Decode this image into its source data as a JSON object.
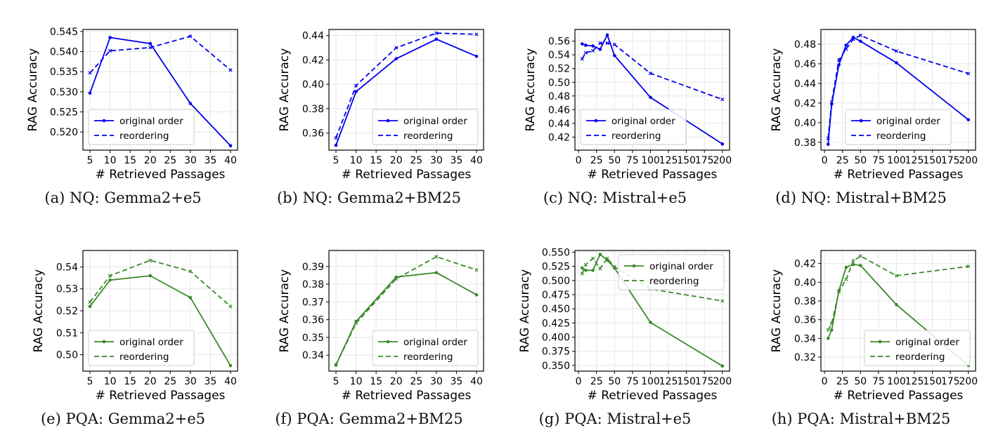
{
  "colors": {
    "blue": "#0000ee",
    "green": "#3a8a2a",
    "grid": "#e6e6e6"
  },
  "charts": [
    {
      "type": "line",
      "caption": "(a)  NQ: Gemma2+e5",
      "color": "blue",
      "xlabel": "# Retrieved Passages",
      "ylabel": "RAG Accuracy",
      "xlim": [
        3.25,
        41.75
      ],
      "ylim": [
        0.5155,
        0.5455
      ],
      "xticks": [
        5,
        10,
        15,
        20,
        25,
        30,
        35,
        40
      ],
      "yticks": [
        0.52,
        0.525,
        0.53,
        0.535,
        0.54,
        0.545
      ],
      "ytick_labels": [
        "0.520",
        "0.525",
        "0.530",
        "0.535",
        "0.540",
        "0.545"
      ],
      "legend_loc": "lower-left",
      "series": [
        {
          "name": "original order",
          "x": [
            5,
            10,
            20,
            30,
            40
          ],
          "y": [
            0.5297,
            0.5435,
            0.542,
            0.5271,
            0.5166
          ]
        },
        {
          "name": "reordering",
          "x": [
            5,
            10,
            20,
            30,
            40
          ],
          "y": [
            0.5347,
            0.5402,
            0.541,
            0.5438,
            0.5354
          ]
        }
      ]
    },
    {
      "type": "line",
      "caption": "(b)  NQ: Gemma2+BM25",
      "color": "blue",
      "xlabel": "# Retrieved Passages",
      "ylabel": "RAG Accuracy",
      "xlim": [
        3.25,
        41.75
      ],
      "ylim": [
        0.346,
        0.445
      ],
      "xticks": [
        5,
        10,
        15,
        20,
        25,
        30,
        35,
        40
      ],
      "yticks": [
        0.36,
        0.38,
        0.4,
        0.42,
        0.44
      ],
      "ytick_labels": [
        "0.36",
        "0.38",
        "0.40",
        "0.42",
        "0.44"
      ],
      "legend_loc": "lower-right",
      "series": [
        {
          "name": "original order",
          "x": [
            5,
            10,
            20,
            30,
            40
          ],
          "y": [
            0.35,
            0.394,
            0.421,
            0.437,
            0.423
          ]
        },
        {
          "name": "reordering",
          "x": [
            5,
            10,
            20,
            30,
            40
          ],
          "y": [
            0.356,
            0.399,
            0.43,
            0.442,
            0.441
          ]
        }
      ]
    },
    {
      "type": "line",
      "caption": "(c)  NQ: Mistral+e5",
      "color": "blue",
      "xlabel": "# Retrieved Passages",
      "ylabel": "RAG Accuracy",
      "xlim": [
        -5,
        210
      ],
      "ylim": [
        0.401,
        0.577
      ],
      "xticks": [
        0,
        25,
        50,
        75,
        100,
        125,
        150,
        175,
        200
      ],
      "yticks": [
        0.42,
        0.44,
        0.46,
        0.48,
        0.5,
        0.52,
        0.54,
        0.56
      ],
      "ytick_labels": [
        "0.42",
        "0.44",
        "0.46",
        "0.48",
        "0.50",
        "0.52",
        "0.54",
        "0.56"
      ],
      "legend_loc": "lower-left",
      "series": [
        {
          "name": "original order",
          "x": [
            5,
            10,
            20,
            30,
            40,
            50,
            100,
            200
          ],
          "y": [
            0.556,
            0.554,
            0.553,
            0.548,
            0.569,
            0.539,
            0.478,
            0.41
          ]
        },
        {
          "name": "reordering",
          "x": [
            5,
            10,
            20,
            30,
            40,
            50,
            100,
            200
          ],
          "y": [
            0.534,
            0.543,
            0.546,
            0.557,
            0.557,
            0.555,
            0.513,
            0.475
          ]
        }
      ]
    },
    {
      "type": "line",
      "caption": "(d)  NQ: Mistral+BM25",
      "color": "blue",
      "xlabel": "# Retrieved Passages",
      "ylabel": "RAG Accuracy",
      "xlim": [
        -5,
        210
      ],
      "ylim": [
        0.372,
        0.495
      ],
      "xticks": [
        0,
        25,
        50,
        75,
        100,
        125,
        150,
        175,
        200
      ],
      "yticks": [
        0.38,
        0.4,
        0.42,
        0.44,
        0.46,
        0.48
      ],
      "ytick_labels": [
        "0.38",
        "0.40",
        "0.42",
        "0.44",
        "0.46",
        "0.48"
      ],
      "legend_loc": "lower-center",
      "series": [
        {
          "name": "original order",
          "x": [
            5,
            10,
            20,
            30,
            40,
            50,
            100,
            200
          ],
          "y": [
            0.378,
            0.419,
            0.459,
            0.479,
            0.487,
            0.483,
            0.461,
            0.403
          ]
        },
        {
          "name": "reordering",
          "x": [
            5,
            10,
            20,
            30,
            40,
            50,
            100,
            200
          ],
          "y": [
            0.384,
            0.421,
            0.464,
            0.475,
            0.485,
            0.489,
            0.473,
            0.45
          ]
        }
      ]
    },
    {
      "type": "line",
      "caption": "(e)  PQA: Gemma2+e5",
      "color": "green",
      "xlabel": "# Retrieved Passages",
      "ylabel": "RAG Accuracy",
      "xlim": [
        3.25,
        41.75
      ],
      "ylim": [
        0.4925,
        0.5475
      ],
      "xticks": [
        5,
        10,
        15,
        20,
        25,
        30,
        35,
        40
      ],
      "yticks": [
        0.5,
        0.51,
        0.52,
        0.53,
        0.54
      ],
      "ytick_labels": [
        "0.50",
        "0.51",
        "0.52",
        "0.53",
        "0.54"
      ],
      "legend_loc": "lower-left",
      "series": [
        {
          "name": "original order",
          "x": [
            5,
            10,
            20,
            30,
            40
          ],
          "y": [
            0.522,
            0.534,
            0.536,
            0.526,
            0.495
          ]
        },
        {
          "name": "reordering",
          "x": [
            5,
            10,
            20,
            30,
            40
          ],
          "y": [
            0.524,
            0.536,
            0.543,
            0.538,
            0.522
          ]
        }
      ]
    },
    {
      "type": "line",
      "caption": "(f)  PQA: Gemma2+BM25",
      "color": "green",
      "xlabel": "# Retrieved Passages",
      "ylabel": "RAG Accuracy",
      "xlim": [
        3.25,
        41.75
      ],
      "ylim": [
        0.331,
        0.399
      ],
      "xticks": [
        5,
        10,
        15,
        20,
        25,
        30,
        35,
        40
      ],
      "yticks": [
        0.34,
        0.35,
        0.36,
        0.37,
        0.38,
        0.39
      ],
      "ytick_labels": [
        "0.34",
        "0.35",
        "0.36",
        "0.37",
        "0.38",
        "0.39"
      ],
      "legend_loc": "lower-right",
      "series": [
        {
          "name": "original order",
          "x": [
            5,
            10,
            20,
            30,
            40
          ],
          "y": [
            0.3345,
            0.359,
            0.384,
            0.3865,
            0.374
          ]
        },
        {
          "name": "reordering",
          "x": [
            5,
            10,
            20,
            30,
            40
          ],
          "y": [
            0.3345,
            0.358,
            0.383,
            0.3955,
            0.388
          ]
        }
      ]
    },
    {
      "type": "line",
      "caption": "(g)  PQA: Mistral+e5",
      "color": "green",
      "xlabel": "# Retrieved Passages",
      "ylabel": "RAG Accuracy",
      "xlim": [
        -5,
        210
      ],
      "ylim": [
        0.34,
        0.553
      ],
      "xticks": [
        0,
        25,
        50,
        75,
        100,
        125,
        150,
        175,
        200
      ],
      "yticks": [
        0.35,
        0.375,
        0.4,
        0.425,
        0.45,
        0.475,
        0.5,
        0.525,
        0.55
      ],
      "ytick_labels": [
        "0.350",
        "0.375",
        "0.400",
        "0.425",
        "0.450",
        "0.475",
        "0.500",
        "0.525",
        "0.550"
      ],
      "legend_loc": "upper-right",
      "series": [
        {
          "name": "original order",
          "x": [
            5,
            10,
            20,
            30,
            40,
            50,
            100,
            200
          ],
          "y": [
            0.522,
            0.518,
            0.518,
            0.546,
            0.536,
            0.522,
            0.426,
            0.349
          ]
        },
        {
          "name": "reordering",
          "x": [
            5,
            10,
            20,
            30,
            40,
            50,
            100,
            200
          ],
          "y": [
            0.512,
            0.528,
            0.539,
            0.521,
            0.539,
            0.524,
            0.485,
            0.464
          ]
        }
      ]
    },
    {
      "type": "line",
      "caption": "(h)  PQA: Mistral+BM25",
      "color": "green",
      "xlabel": "# Retrieved Passages",
      "ylabel": "RAG Accuracy",
      "xlim": [
        -5,
        210
      ],
      "ylim": [
        0.305,
        0.434
      ],
      "xticks": [
        0,
        25,
        50,
        75,
        100,
        125,
        150,
        175,
        200
      ],
      "yticks": [
        0.32,
        0.34,
        0.36,
        0.38,
        0.4,
        0.42
      ],
      "ytick_labels": [
        "0.32",
        "0.34",
        "0.36",
        "0.38",
        "0.40",
        "0.42"
      ],
      "legend_loc": "lower-right",
      "series": [
        {
          "name": "original order",
          "x": [
            5,
            10,
            20,
            30,
            40,
            50,
            100,
            200
          ],
          "y": [
            0.34,
            0.349,
            0.391,
            0.416,
            0.419,
            0.418,
            0.376,
            0.311
          ]
        },
        {
          "name": "reordering",
          "x": [
            5,
            10,
            20,
            30,
            40,
            50,
            100,
            200
          ],
          "y": [
            0.349,
            0.356,
            0.39,
            0.403,
            0.423,
            0.428,
            0.407,
            0.417
          ]
        }
      ]
    }
  ]
}
